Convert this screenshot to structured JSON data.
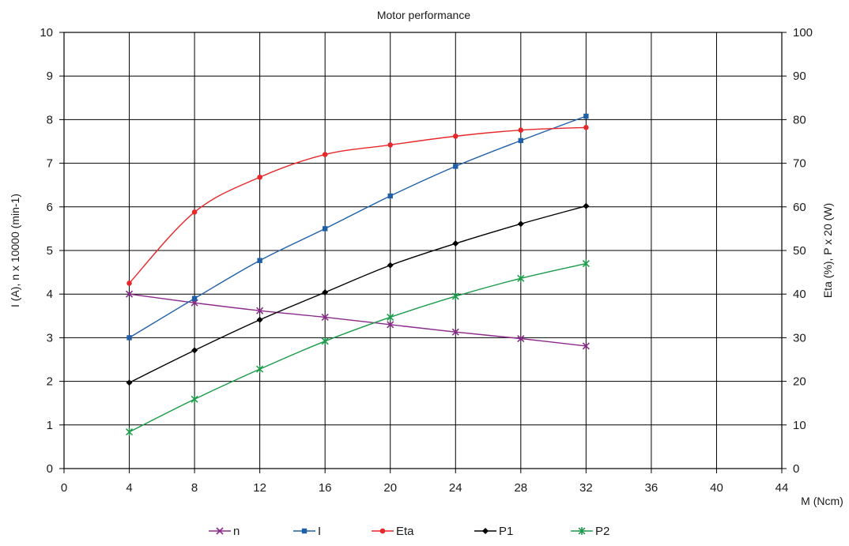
{
  "chart_data": {
    "type": "line",
    "title": "Motor performance",
    "xlabel": "M (Ncm)",
    "ylabel_left": "I (A), n x 10000 (min-1)",
    "ylabel_right": "Eta (%), P x 20 (W)",
    "xlim": [
      0,
      44
    ],
    "ylim_left": [
      0,
      10
    ],
    "ylim_right": [
      0,
      100
    ],
    "x_ticks": [
      "0",
      "4",
      "8",
      "12",
      "16",
      "20",
      "24",
      "28",
      "32",
      "36",
      "40",
      "44"
    ],
    "y_left_ticks": [
      "0",
      "1",
      "2",
      "3",
      "4",
      "5",
      "6",
      "7",
      "8",
      "9",
      "10"
    ],
    "y_right_ticks": [
      "0",
      "10",
      "20",
      "30",
      "40",
      "50",
      "60",
      "70",
      "80",
      "90",
      "100"
    ],
    "grid": true,
    "legend_position": "bottom",
    "x": [
      4,
      8,
      12,
      16,
      20,
      24,
      28,
      32
    ],
    "series": [
      {
        "name": "n",
        "axis": "right",
        "color": "#8b2a8b",
        "marker": "x",
        "values": [
          40.0,
          38.0,
          36.2,
          34.7,
          33.0,
          31.3,
          29.8,
          28.1
        ]
      },
      {
        "name": "I",
        "axis": "left",
        "color": "#1f5fa8",
        "marker": "square",
        "values": [
          3.0,
          3.9,
          4.77,
          5.5,
          6.25,
          6.93,
          7.52,
          8.08
        ]
      },
      {
        "name": "Eta",
        "axis": "right",
        "color": "#e8272a",
        "marker": "circle",
        "values": [
          42.5,
          58.8,
          66.8,
          72.0,
          74.2,
          76.2,
          77.6,
          78.2
        ]
      },
      {
        "name": "P1",
        "axis": "right",
        "color": "#000000",
        "marker": "diamond",
        "values": [
          19.7,
          27.1,
          34.1,
          40.4,
          46.6,
          51.6,
          56.1,
          60.2
        ]
      },
      {
        "name": "P2",
        "axis": "right",
        "color": "#1b9a4a",
        "marker": "star",
        "values": [
          8.4,
          15.9,
          22.8,
          29.2,
          34.7,
          39.5,
          43.6,
          47.0
        ]
      }
    ]
  }
}
